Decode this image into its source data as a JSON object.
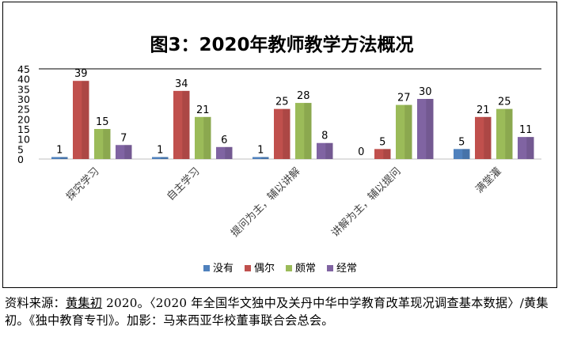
{
  "chart_data": {
    "type": "bar",
    "title": "图3：2020年教师教学方法概况",
    "categories": [
      "探究学习",
      "自主学习",
      "提问为主，辅以讲解",
      "讲解为主，辅以提问",
      "满堂灌"
    ],
    "series": [
      {
        "name": "没有",
        "values": [
          1,
          1,
          1,
          0,
          5
        ],
        "color": "#4f81bd"
      },
      {
        "name": "偶尔",
        "values": [
          39,
          34,
          25,
          5,
          21
        ],
        "color": "#c0504d"
      },
      {
        "name": "颇常",
        "values": [
          15,
          21,
          28,
          27,
          25
        ],
        "color": "#9bbb59"
      },
      {
        "name": "经常",
        "values": [
          7,
          6,
          8,
          30,
          11
        ],
        "color": "#8064a2"
      }
    ],
    "y_ticks": [
      "0",
      "5",
      "10",
      "15",
      "20",
      "25",
      "30",
      "35",
      "40",
      "45"
    ],
    "ylim": [
      0,
      45
    ],
    "grid": false,
    "legend_position": "bottom"
  },
  "source": {
    "prefix": "资料来源：",
    "author_link": "黄集初",
    "rest": " 2020。〈2020 年全国华文独中及关丹中华中学教育改革现况调查基本数据〉/黄集初。《独中教育专刊》。加影：马来西亚华校董事联合会总会。"
  }
}
